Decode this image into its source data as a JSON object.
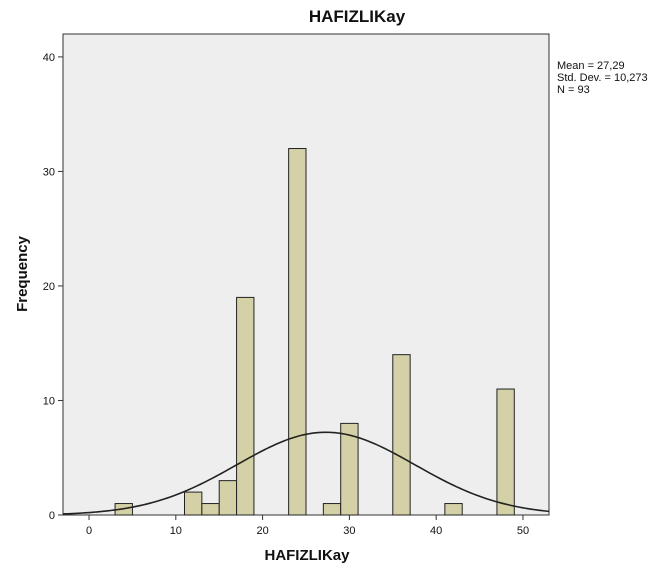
{
  "chart_data": {
    "type": "bar",
    "title": "HAFIZLIKay",
    "xlabel": "HAFIZLIKay",
    "ylabel": "Frequency",
    "xlim": [
      -3,
      53
    ],
    "ylim": [
      0,
      42
    ],
    "xticks": [
      0,
      10,
      20,
      30,
      40,
      50
    ],
    "yticks": [
      0,
      10,
      20,
      30,
      40
    ],
    "bin_width": 2,
    "bins": [
      {
        "x0": 3,
        "x1": 5,
        "count": 1
      },
      {
        "x0": 11,
        "x1": 13,
        "count": 2
      },
      {
        "x0": 13,
        "x1": 15,
        "count": 1
      },
      {
        "x0": 15,
        "x1": 17,
        "count": 3
      },
      {
        "x0": 17,
        "x1": 19,
        "count": 19
      },
      {
        "x0": 23,
        "x1": 25,
        "count": 32
      },
      {
        "x0": 27,
        "x1": 29,
        "count": 1
      },
      {
        "x0": 29,
        "x1": 31,
        "count": 8
      },
      {
        "x0": 35,
        "x1": 37,
        "count": 14
      },
      {
        "x0": 41,
        "x1": 43,
        "count": 1
      },
      {
        "x0": 47,
        "x1": 49,
        "count": 11
      }
    ],
    "normal_curve": {
      "mean": 27.29,
      "std_dev": 10.273,
      "n": 93
    },
    "stats_text": [
      "Mean = 27,29",
      "Std. Dev. = 10,273",
      "N = 93"
    ],
    "colors": {
      "plot_bg": "#eeeeee",
      "bar_fill": "#d5d1a6",
      "bar_stroke": "#222222",
      "curve": "#222222"
    },
    "grid": false,
    "stats_placement": "top-right"
  }
}
